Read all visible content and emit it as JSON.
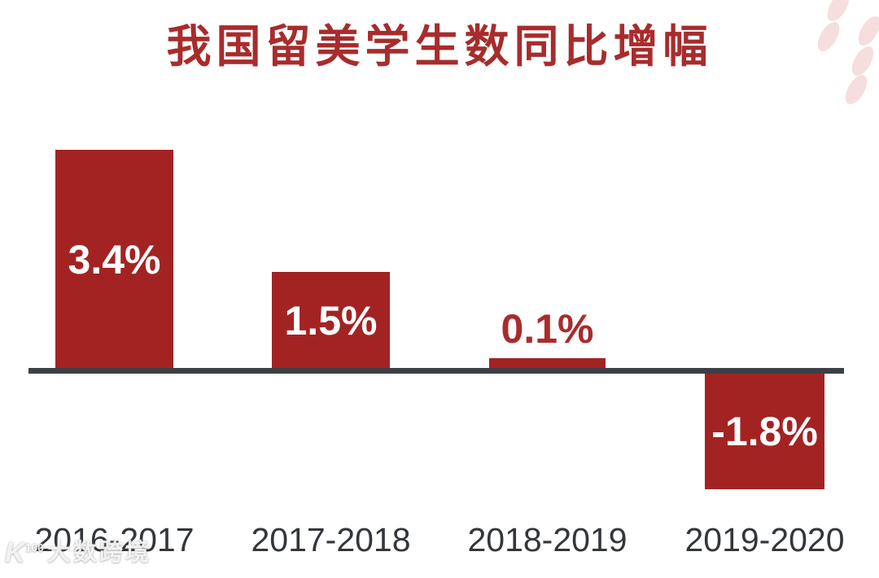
{
  "title": "我国留美学生数同比增幅",
  "chart_data": {
    "type": "bar",
    "title": "我国留美学生数同比增幅",
    "categories": [
      "2016-2017",
      "2017-2018",
      "2018-2019",
      "2019-2020"
    ],
    "values": [
      3.4,
      1.5,
      0.1,
      -1.8
    ],
    "value_labels": [
      "3.4%",
      "1.5%",
      "0.1%",
      "-1.8%"
    ],
    "xlabel": "",
    "ylabel": "",
    "ylim": [
      -2,
      3.6
    ],
    "grid": false,
    "legend": false,
    "baseline": 0,
    "bar_color": "#a32323",
    "title_color": "#a82c2c",
    "axis_color": "#3b4046",
    "tick_label_color": "#33373c",
    "value_label_inside_color": "#ffffff",
    "value_label_outside_color": "#a82c2c"
  },
  "decor": {
    "petal_color": "#f6dede",
    "petal_count": 5
  },
  "watermark": {
    "logo": "K",
    "logo_sup": "100",
    "text": "大数跨境"
  }
}
